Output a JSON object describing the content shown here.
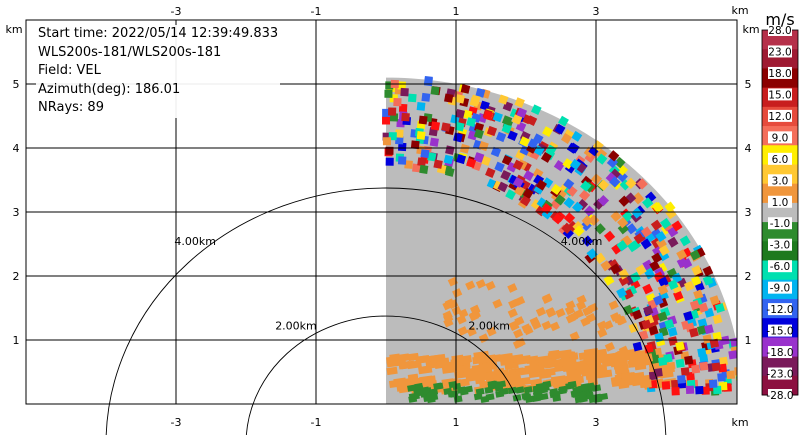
{
  "info": {
    "line1": "Start time: 2022/05/14 12:39:49.833",
    "line2": "WLS200s-181/WLS200s-181",
    "line3": "Field: VEL",
    "line4": "Azimuth(deg): 186.01",
    "line5": "NRays: 89"
  },
  "axes": {
    "x_unit": "km",
    "y_unit": "km",
    "x_ticks": [
      "-3",
      "-1",
      "1",
      "3"
    ],
    "y_ticks": [
      "1",
      "2",
      "3",
      "4",
      "5"
    ],
    "xlim": [
      -4.6,
      4.1
    ],
    "ylim": [
      0,
      5.3
    ],
    "grid": true
  },
  "range_rings": [
    {
      "radius_km": 2.0,
      "label": "2.00km"
    },
    {
      "radius_km": 4.0,
      "label": "4.00km"
    }
  ],
  "colorbar": {
    "unit": "m/s",
    "labels": [
      "28.0",
      "23.0",
      "18.0",
      "15.0",
      "12.0",
      "9.0",
      "6.0",
      "3.0",
      "1.0",
      "-1.0",
      "-3.0",
      "-6.0",
      "-9.0",
      "-12.0",
      "-15.0",
      "-18.0",
      "-23.0",
      "-28.0"
    ],
    "colors": [
      "#b5304a",
      "#9e1a32",
      "#8b0000",
      "#c81e1e",
      "#e64b3c",
      "#f46e5a",
      "#ffee00",
      "#ffc832",
      "#f0963c",
      "#bcbcbc",
      "#2e8b2e",
      "#1e7a1e",
      "#00e0b0",
      "#00b4f0",
      "#3264f0",
      "#0000dc",
      "#9932cc",
      "#7a1a5a",
      "#8c1040"
    ]
  },
  "chart_data": {
    "type": "heatmap",
    "title": "",
    "field": "VEL",
    "xlabel": "km",
    "ylabel": "km",
    "xlim": [
      -4.6,
      4.1
    ],
    "ylim": [
      0,
      5.3
    ],
    "sector_azimuth_deg": [
      0,
      90
    ],
    "max_range_km": 5.1,
    "regions": [
      {
        "description": "near-zero velocity background",
        "range_km": [
          0,
          5.1
        ],
        "value_ms": 0
      },
      {
        "description": "receding band low",
        "range_km": [
          0.2,
          0.8
        ],
        "value_ms": 2
      },
      {
        "description": "approaching band",
        "range_km": [
          0.0,
          0.35
        ],
        "value_ms": -4
      },
      {
        "description": "mixed noisy returns",
        "range_km": [
          3.6,
          5.1
        ],
        "value_ms": "mixed"
      }
    ]
  }
}
